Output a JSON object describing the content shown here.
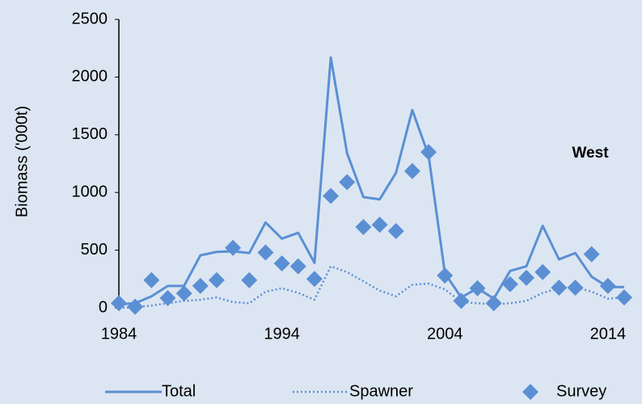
{
  "chart_data": {
    "type": "line",
    "ylabel": "Biomass ('000t)",
    "annotation": "West",
    "x": [
      1984,
      1985,
      1986,
      1987,
      1988,
      1989,
      1990,
      1991,
      1992,
      1993,
      1994,
      1995,
      1996,
      1997,
      1998,
      1999,
      2000,
      2001,
      2002,
      2003,
      2004,
      2005,
      2006,
      2007,
      2008,
      2009,
      2010,
      2011,
      2012,
      2013,
      2014,
      2015
    ],
    "series": [
      {
        "name": "Total",
        "color": "#5b8fd4",
        "style": "solid",
        "values": [
          30,
          40,
          100,
          190,
          190,
          455,
          485,
          490,
          475,
          740,
          600,
          650,
          390,
          2170,
          1340,
          960,
          940,
          1170,
          1715,
          1320,
          300,
          90,
          170,
          80,
          320,
          360,
          710,
          420,
          475,
          270,
          180,
          180
        ]
      },
      {
        "name": "Spawner",
        "color": "#5b8fd4",
        "style": "dotted",
        "values": [
          0,
          5,
          20,
          40,
          60,
          70,
          90,
          50,
          40,
          140,
          170,
          130,
          70,
          360,
          310,
          230,
          150,
          100,
          200,
          210,
          160,
          50,
          40,
          30,
          40,
          60,
          130,
          170,
          180,
          140,
          80,
          90
        ]
      },
      {
        "name": "Survey",
        "color": "#5b8fd4",
        "style": "marker",
        "values": [
          40,
          10,
          240,
          85,
          125,
          190,
          240,
          520,
          240,
          480,
          385,
          360,
          250,
          970,
          1090,
          700,
          720,
          665,
          1185,
          1350,
          280,
          60,
          170,
          40,
          205,
          260,
          310,
          175,
          175,
          465,
          190,
          90
        ]
      }
    ],
    "xlim": [
      1984,
      2015
    ],
    "xticks": [
      1984,
      1994,
      2004,
      2014
    ],
    "ylim": [
      0,
      2500
    ],
    "yticks": [
      0,
      500,
      1000,
      1500,
      2000,
      2500
    ],
    "legend": "bottom",
    "grid": false
  }
}
